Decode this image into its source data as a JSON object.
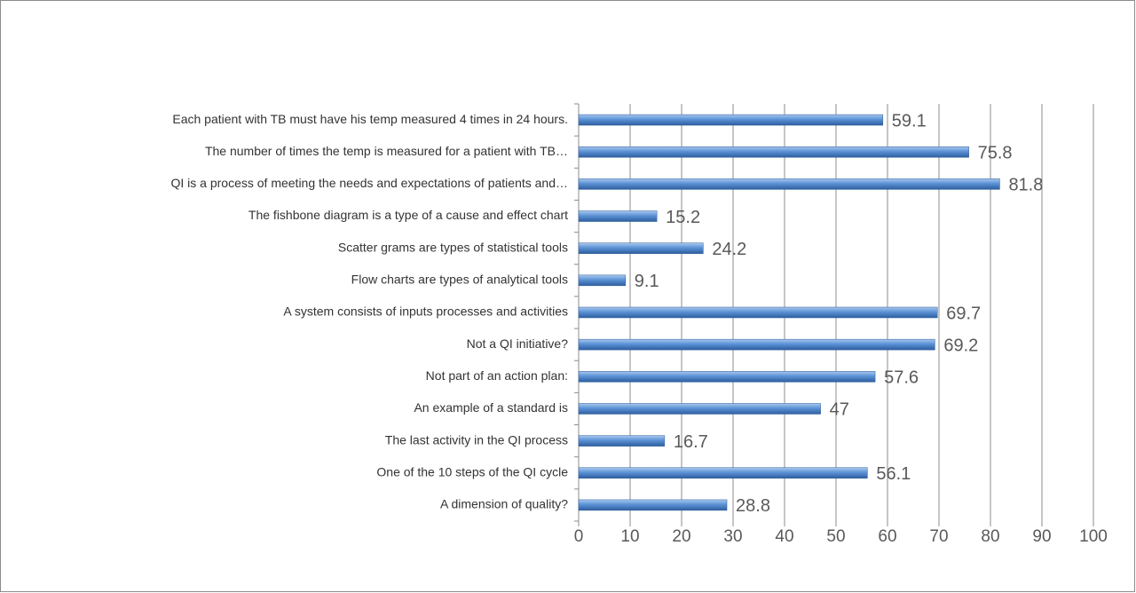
{
  "chart_data": {
    "type": "barh",
    "categories": [
      "Each patient with TB must have his temp measured 4 times in 24 hours.",
      "The number of times the temp is measured for a patient with TB…",
      "QI is a process of meeting the needs and expectations of patients and…",
      "The fishbone diagram is a type of a cause and effect chart",
      "Scatter grams are types of statistical tools",
      "Flow charts are types of analytical tools",
      "A system consists of inputs processes and activities",
      "Not a QI initiative?",
      "Not part of an action plan:",
      "An example of a standard is",
      "The last activity in the QI process",
      "One of the 10 steps of the QI cycle",
      "A dimension of quality?"
    ],
    "values": [
      59.1,
      75.8,
      81.8,
      15.2,
      24.2,
      9.1,
      69.7,
      69.2,
      57.6,
      47,
      16.7,
      56.1,
      28.8
    ],
    "color": "#4f81bd",
    "xlim": [
      0,
      100
    ],
    "xticks": [
      0,
      10,
      20,
      30,
      40,
      50,
      60,
      70,
      80,
      90,
      100
    ],
    "grid": true
  }
}
